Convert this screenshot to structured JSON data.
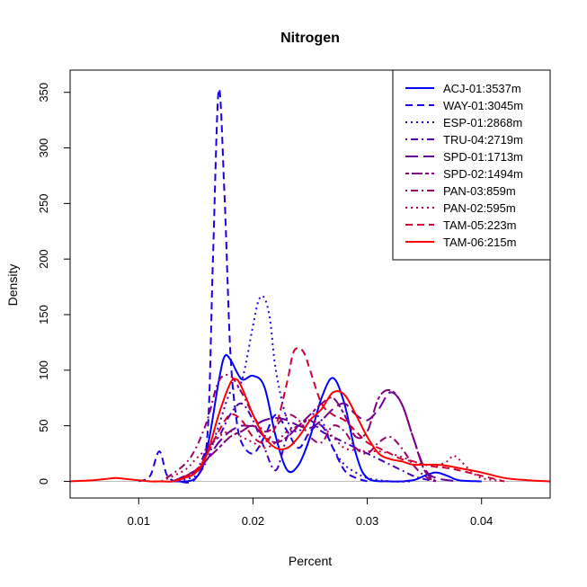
{
  "chart_data": {
    "type": "line",
    "title": "Nitrogen",
    "xlabel": "Percent",
    "ylabel": "Density",
    "xlim": [
      0.004,
      0.046
    ],
    "ylim": [
      0,
      355
    ],
    "xticks": [
      0.01,
      0.02,
      0.03,
      0.04
    ],
    "xtick_labels": [
      "0.01",
      "0.02",
      "0.03",
      "0.04"
    ],
    "yticks": [
      0,
      50,
      100,
      150,
      200,
      250,
      300,
      350
    ],
    "ytick_labels": [
      "0",
      "50",
      "100",
      "150",
      "200",
      "250",
      "300",
      "350"
    ],
    "legend_position": "top-right",
    "grid": false,
    "series": [
      {
        "name": "ACJ-01:3537m",
        "color": "#0000ff",
        "dash": "solid",
        "x": [
          0.013,
          0.015,
          0.016,
          0.017,
          0.0175,
          0.018,
          0.019,
          0.02,
          0.021,
          0.022,
          0.023,
          0.024,
          0.025,
          0.026,
          0.027,
          0.028,
          0.029,
          0.03,
          0.032,
          0.034,
          0.035,
          0.036,
          0.037,
          0.038,
          0.04
        ],
        "y": [
          0,
          3,
          30,
          90,
          112,
          110,
          92,
          95,
          85,
          40,
          10,
          15,
          40,
          75,
          93,
          70,
          25,
          3,
          0,
          1,
          5,
          8,
          5,
          1,
          0
        ]
      },
      {
        "name": "WAY-01:3045m",
        "color": "#1a00e6",
        "dash": "dashed",
        "x": [
          0.01,
          0.011,
          0.0118,
          0.0125,
          0.0135,
          0.015,
          0.016,
          0.0165,
          0.017,
          0.0175,
          0.018,
          0.0185,
          0.019,
          0.02,
          0.021,
          0.022,
          0.023,
          0.024,
          0.025,
          0.026,
          0.027,
          0.028,
          0.029,
          0.03
        ],
        "y": [
          0,
          5,
          27,
          5,
          0,
          3,
          40,
          200,
          352,
          260,
          120,
          60,
          35,
          25,
          40,
          60,
          45,
          30,
          45,
          50,
          30,
          10,
          3,
          0
        ],
        "peak": 350
      },
      {
        "name": "ESP-01:2868m",
        "color": "#3300cc",
        "dash": "dotted",
        "x": [
          0.013,
          0.015,
          0.016,
          0.017,
          0.018,
          0.019,
          0.02,
          0.0205,
          0.021,
          0.0215,
          0.022,
          0.023,
          0.024,
          0.025,
          0.026,
          0.027,
          0.028,
          0.029,
          0.03,
          0.032,
          0.034
        ],
        "y": [
          0,
          5,
          20,
          50,
          80,
          90,
          140,
          163,
          165,
          145,
          100,
          55,
          45,
          60,
          55,
          30,
          15,
          8,
          3,
          0,
          0
        ]
      },
      {
        "name": "TRU-04:2719m",
        "color": "#4d00b3",
        "dash": "dotdash",
        "x": [
          0.013,
          0.015,
          0.016,
          0.017,
          0.018,
          0.019,
          0.02,
          0.021,
          0.022,
          0.023,
          0.024,
          0.025,
          0.026,
          0.027,
          0.028,
          0.029,
          0.03,
          0.031,
          0.032,
          0.033,
          0.034,
          0.035,
          0.036
        ],
        "y": [
          0,
          10,
          30,
          40,
          60,
          70,
          55,
          30,
          10,
          40,
          50,
          55,
          45,
          40,
          35,
          30,
          25,
          20,
          15,
          10,
          5,
          2,
          0
        ]
      },
      {
        "name": "SPD-01:1713m",
        "color": "#660099",
        "dash": "longdash",
        "x": [
          0.013,
          0.015,
          0.016,
          0.017,
          0.018,
          0.019,
          0.02,
          0.021,
          0.022,
          0.023,
          0.024,
          0.025,
          0.026,
          0.027,
          0.028,
          0.029,
          0.03,
          0.031,
          0.032,
          0.033,
          0.034,
          0.035,
          0.036,
          0.038
        ],
        "y": [
          0,
          10,
          20,
          35,
          45,
          50,
          50,
          55,
          57,
          55,
          50,
          48,
          55,
          65,
          70,
          60,
          55,
          65,
          80,
          70,
          40,
          12,
          3,
          0
        ]
      },
      {
        "name": "SPD-02:1494m",
        "color": "#800080",
        "dash": "twodash",
        "x": [
          0.013,
          0.015,
          0.016,
          0.017,
          0.018,
          0.019,
          0.02,
          0.021,
          0.022,
          0.023,
          0.024,
          0.025,
          0.026,
          0.027,
          0.028,
          0.029,
          0.03,
          0.031,
          0.032,
          0.033,
          0.034,
          0.035,
          0.036
        ],
        "y": [
          0,
          8,
          20,
          30,
          40,
          45,
          50,
          40,
          35,
          40,
          50,
          60,
          70,
          75,
          60,
          40,
          45,
          75,
          82,
          70,
          40,
          10,
          0
        ]
      },
      {
        "name": "PAN-03:859m",
        "color": "#990066",
        "dash": "dotdash",
        "x": [
          0.012,
          0.014,
          0.015,
          0.016,
          0.017,
          0.018,
          0.019,
          0.02,
          0.021,
          0.022,
          0.023,
          0.024,
          0.025,
          0.026,
          0.027,
          0.028,
          0.029,
          0.03,
          0.031,
          0.032,
          0.033,
          0.034,
          0.035,
          0.036
        ],
        "y": [
          0,
          15,
          30,
          55,
          90,
          95,
          80,
          60,
          45,
          50,
          60,
          55,
          40,
          35,
          50,
          45,
          30,
          25,
          35,
          40,
          30,
          15,
          5,
          0
        ]
      },
      {
        "name": "PAN-02:595m",
        "color": "#b3004d",
        "dash": "dotted",
        "x": [
          0.012,
          0.014,
          0.015,
          0.016,
          0.017,
          0.018,
          0.019,
          0.02,
          0.021,
          0.022,
          0.023,
          0.024,
          0.025,
          0.026,
          0.027,
          0.028,
          0.029,
          0.03,
          0.031,
          0.032,
          0.033,
          0.034,
          0.035,
          0.036,
          0.037,
          0.0375,
          0.038,
          0.039,
          0.04,
          0.042
        ],
        "y": [
          0,
          10,
          20,
          30,
          40,
          45,
          40,
          35,
          30,
          35,
          45,
          50,
          55,
          50,
          40,
          30,
          28,
          27,
          27,
          25,
          22,
          18,
          15,
          14,
          18,
          23,
          20,
          10,
          3,
          0
        ]
      },
      {
        "name": "TAM-05:223m",
        "color": "#cc0033",
        "dash": "dashed",
        "x": [
          0.013,
          0.015,
          0.016,
          0.017,
          0.018,
          0.019,
          0.02,
          0.021,
          0.022,
          0.023,
          0.0235,
          0.024,
          0.0245,
          0.025,
          0.026,
          0.027,
          0.028,
          0.029,
          0.03,
          0.031,
          0.032,
          0.033,
          0.034,
          0.035,
          0.036,
          0.037,
          0.038,
          0.04,
          0.042
        ],
        "y": [
          0,
          10,
          25,
          45,
          60,
          55,
          40,
          35,
          50,
          90,
          115,
          120,
          115,
          100,
          70,
          60,
          55,
          45,
          35,
          30,
          25,
          20,
          18,
          15,
          13,
          12,
          10,
          5,
          0
        ]
      },
      {
        "name": "TAM-06:215m",
        "color": "#ff0000",
        "dash": "solid",
        "x": [
          0.004,
          0.006,
          0.007,
          0.008,
          0.009,
          0.01,
          0.011,
          0.012,
          0.013,
          0.014,
          0.015,
          0.016,
          0.017,
          0.018,
          0.0185,
          0.019,
          0.02,
          0.021,
          0.022,
          0.023,
          0.024,
          0.025,
          0.026,
          0.027,
          0.028,
          0.029,
          0.03,
          0.031,
          0.032,
          0.033,
          0.034,
          0.035,
          0.036,
          0.037,
          0.038,
          0.04,
          0.042,
          0.044,
          0.046
        ],
        "y": [
          0,
          1,
          2,
          3,
          2,
          1,
          0,
          0,
          0,
          3,
          8,
          25,
          60,
          88,
          92,
          85,
          60,
          40,
          30,
          30,
          40,
          55,
          65,
          80,
          78,
          60,
          40,
          25,
          20,
          18,
          15,
          15,
          15,
          14,
          12,
          8,
          3,
          1,
          0
        ]
      }
    ]
  }
}
